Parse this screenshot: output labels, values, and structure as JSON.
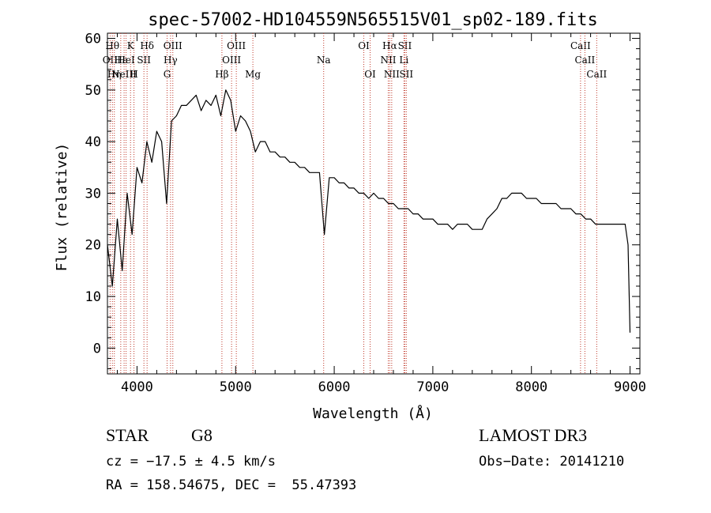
{
  "chart_data": {
    "type": "line",
    "title": "spec-57002-HD104559N565515V01_sp02-189.fits",
    "xlabel": "Wavelength (Å)",
    "ylabel": "Flux (relative)",
    "xlim": [
      3700,
      9100
    ],
    "ylim": [
      -5,
      61
    ],
    "xticks": [
      4000,
      5000,
      6000,
      7000,
      8000,
      9000
    ],
    "yticks": [
      0,
      10,
      20,
      30,
      40,
      50,
      60
    ],
    "grid": false,
    "series": [
      {
        "x": [
          3700,
          3750,
          3800,
          3850,
          3900,
          3950,
          4000,
          4050,
          4100,
          4150,
          4200,
          4250,
          4300,
          4350,
          4400,
          4450,
          4500,
          4550,
          4600,
          4650,
          4700,
          4750,
          4800,
          4850,
          4900,
          4950,
          5000,
          5050,
          5100,
          5150,
          5200,
          5250,
          5300,
          5350,
          5400,
          5450,
          5500,
          5550,
          5600,
          5650,
          5700,
          5750,
          5800,
          5850,
          5900,
          5950,
          6000,
          6050,
          6100,
          6150,
          6200,
          6250,
          6300,
          6350,
          6400,
          6450,
          6500,
          6550,
          6600,
          6650,
          6700,
          6750,
          6800,
          6850,
          6900,
          6950,
          7000,
          7050,
          7100,
          7150,
          7200,
          7250,
          7300,
          7350,
          7400,
          7450,
          7500,
          7550,
          7600,
          7650,
          7700,
          7750,
          7800,
          7850,
          7900,
          7950,
          8000,
          8050,
          8100,
          8150,
          8200,
          8250,
          8300,
          8350,
          8400,
          8450,
          8500,
          8550,
          8600,
          8650,
          8700,
          8750,
          8800,
          8850,
          8900,
          8950,
          8980,
          9000
        ],
        "y": [
          20,
          12,
          25,
          15,
          30,
          22,
          35,
          32,
          40,
          36,
          42,
          40,
          28,
          44,
          45,
          47,
          47,
          48,
          49,
          46,
          48,
          47,
          49,
          45,
          50,
          48,
          42,
          45,
          44,
          42,
          38,
          40,
          40,
          38,
          38,
          37,
          37,
          36,
          36,
          35,
          35,
          34,
          34,
          34,
          22,
          33,
          33,
          32,
          32,
          31,
          31,
          30,
          30,
          29,
          30,
          29,
          29,
          28,
          28,
          27,
          27,
          27,
          26,
          26,
          25,
          25,
          25,
          24,
          24,
          24,
          23,
          24,
          24,
          24,
          23,
          23,
          23,
          25,
          26,
          27,
          29,
          29,
          30,
          30,
          30,
          29,
          29,
          29,
          28,
          28,
          28,
          28,
          27,
          27,
          27,
          26,
          26,
          25,
          25,
          24,
          24,
          24,
          24,
          24,
          24,
          24,
          20,
          3
        ]
      }
    ],
    "lines": [
      {
        "x": 3727,
        "label": "OII",
        "row": 1
      },
      {
        "x": 3750,
        "label": "Hθ",
        "row": 0
      },
      {
        "x": 3770,
        "label": "Hη",
        "row": 2
      },
      {
        "x": 3835,
        "label": "Hε",
        "row": 1
      },
      {
        "x": 3869,
        "label": "NeIII",
        "row": 2
      },
      {
        "x": 3889,
        "label": "HeI",
        "row": 1
      },
      {
        "x": 3934,
        "label": "K",
        "row": 0
      },
      {
        "x": 3969,
        "label": "H",
        "row": 2
      },
      {
        "x": 4070,
        "label": "SII",
        "row": 1
      },
      {
        "x": 4102,
        "label": "Hδ",
        "row": 0
      },
      {
        "x": 4305,
        "label": "G",
        "row": 2
      },
      {
        "x": 4340,
        "label": "Hγ",
        "row": 1
      },
      {
        "x": 4363,
        "label": "OIII",
        "row": 0
      },
      {
        "x": 4861,
        "label": "Hβ",
        "row": 2
      },
      {
        "x": 4959,
        "label": "OIII",
        "row": 1
      },
      {
        "x": 5007,
        "label": "OIII",
        "row": 0
      },
      {
        "x": 5175,
        "label": "Mg",
        "row": 2
      },
      {
        "x": 5893,
        "label": "Na",
        "row": 1
      },
      {
        "x": 6300,
        "label": "OI",
        "row": 0
      },
      {
        "x": 6364,
        "label": "OI",
        "row": 2
      },
      {
        "x": 6548,
        "label": "NII",
        "row": 1
      },
      {
        "x": 6563,
        "label": "Hα",
        "row": 0
      },
      {
        "x": 6583,
        "label": "NII",
        "row": 2
      },
      {
        "x": 6707,
        "label": "Li",
        "row": 1
      },
      {
        "x": 6716,
        "label": "SII",
        "row": 0
      },
      {
        "x": 6731,
        "label": "SII",
        "row": 2
      },
      {
        "x": 8498,
        "label": "CaII",
        "row": 0
      },
      {
        "x": 8542,
        "label": "CaII",
        "row": 1
      },
      {
        "x": 8662,
        "label": "CaII",
        "row": 2
      }
    ]
  },
  "info": {
    "object_class": "STAR",
    "subclass": "G8",
    "survey": "LAMOST DR3",
    "redshift": "cz = −17.5 ± 4.5 km/s",
    "obs_date": "Obs−Date: 20141210",
    "coords": "RA = 158.54675, DEC =  55.47393"
  }
}
